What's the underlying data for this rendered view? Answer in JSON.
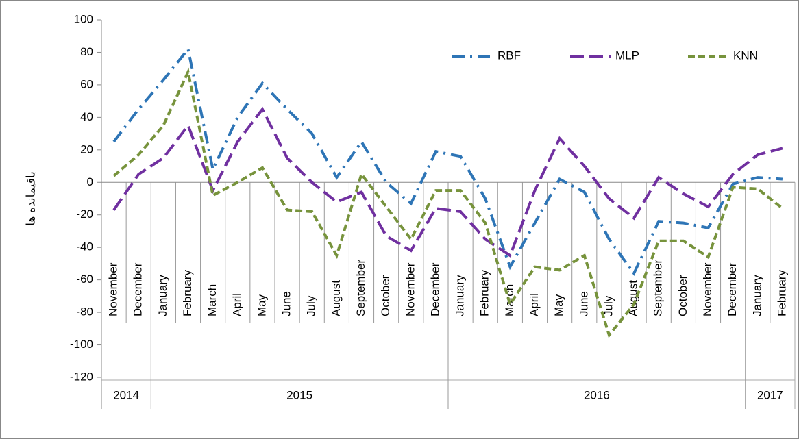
{
  "chart_data": {
    "type": "line",
    "y_label": "باقیمانده ها",
    "categories": [
      "November",
      "December",
      "January",
      "February",
      "March",
      "April",
      "May",
      "June",
      "July",
      "August",
      "September",
      "October",
      "November",
      "December",
      "January",
      "February",
      "March",
      "April",
      "May",
      "June",
      "July",
      "August",
      "September",
      "October",
      "November",
      "December",
      "January",
      "February"
    ],
    "x_groups": [
      "2014",
      "2014",
      "2015",
      "2015",
      "2015",
      "2015",
      "2015",
      "2015",
      "2015",
      "2015",
      "2015",
      "2015",
      "2015",
      "2015",
      "2016",
      "2016",
      "2016",
      "2016",
      "2016",
      "2016",
      "2016",
      "2016",
      "2016",
      "2016",
      "2016",
      "2016",
      "2017",
      "2017"
    ],
    "ylim": [
      -120,
      100
    ],
    "yticks": [
      -120,
      -100,
      -80,
      -60,
      -40,
      -20,
      0,
      20,
      40,
      60,
      80,
      100
    ],
    "legend": "top-right",
    "series": [
      {
        "name": "RBF",
        "color": "#2e75b6",
        "dash": "dashdot",
        "values": [
          25,
          45,
          63,
          82,
          8,
          40,
          61,
          45,
          30,
          3,
          25,
          0,
          -13,
          19,
          16,
          -10,
          -52,
          -25,
          2,
          -6,
          -35,
          -56,
          -24,
          -25,
          -28,
          -1,
          3,
          2
        ]
      },
      {
        "name": "MLP",
        "color": "#7030a0",
        "dash": "longdash",
        "values": [
          -17,
          5,
          15,
          35,
          -5,
          25,
          45,
          15,
          0,
          -12,
          -6,
          -33,
          -42,
          -16,
          -18,
          -35,
          -45,
          -5,
          27,
          10,
          -10,
          -22,
          3,
          -7,
          -15,
          5,
          17,
          21
        ]
      },
      {
        "name": "KNN",
        "color": "#77933c",
        "dash": "dash",
        "values": [
          4,
          17,
          35,
          68,
          -8,
          0,
          9,
          -17,
          -18,
          -45,
          5,
          -15,
          -35,
          -5,
          -5,
          -25,
          -75,
          -52,
          -54,
          -45,
          -94,
          -75,
          -36,
          -36,
          -46,
          -3,
          -4,
          -16
        ]
      }
    ]
  }
}
